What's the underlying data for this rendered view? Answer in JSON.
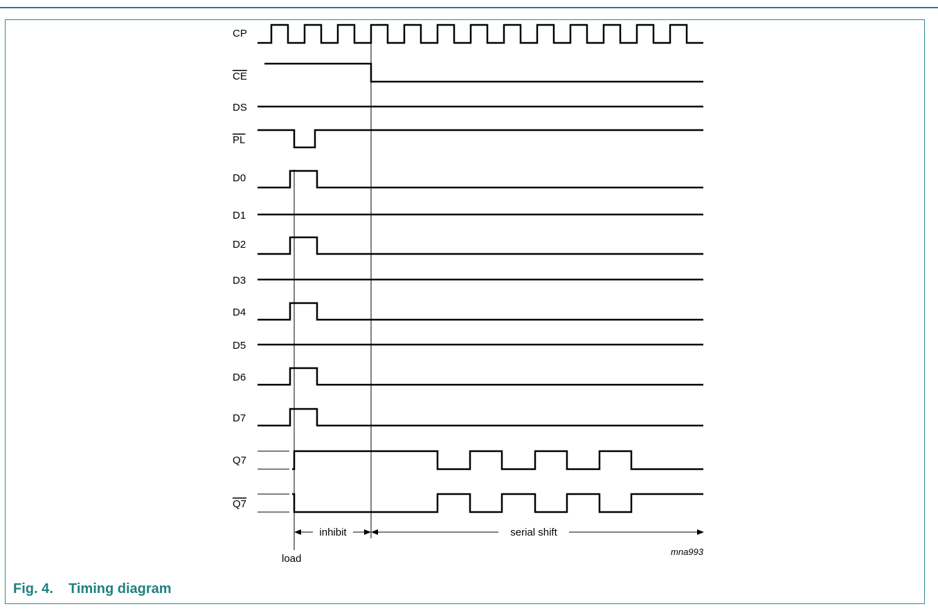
{
  "signals": [
    {
      "name": "CP",
      "overline": false
    },
    {
      "name": "CE",
      "overline": true
    },
    {
      "name": "DS",
      "overline": false
    },
    {
      "name": "PL",
      "overline": true
    },
    {
      "name": "D0",
      "overline": false
    },
    {
      "name": "D1",
      "overline": false
    },
    {
      "name": "D2",
      "overline": false
    },
    {
      "name": "D3",
      "overline": false
    },
    {
      "name": "D4",
      "overline": false
    },
    {
      "name": "D5",
      "overline": false
    },
    {
      "name": "D6",
      "overline": false
    },
    {
      "name": "D7",
      "overline": false
    },
    {
      "name": "Q7",
      "overline": false
    },
    {
      "name": "Q7",
      "overline": true
    }
  ],
  "annotations": {
    "inhibit": "inhibit",
    "serial_shift": "serial shift",
    "load": "load",
    "figure_code": "mna993"
  },
  "caption": {
    "number": "Fig. 4.",
    "title": "Timing diagram"
  },
  "colors": {
    "accent": "#1f7f7f",
    "waveform": "#000000"
  }
}
